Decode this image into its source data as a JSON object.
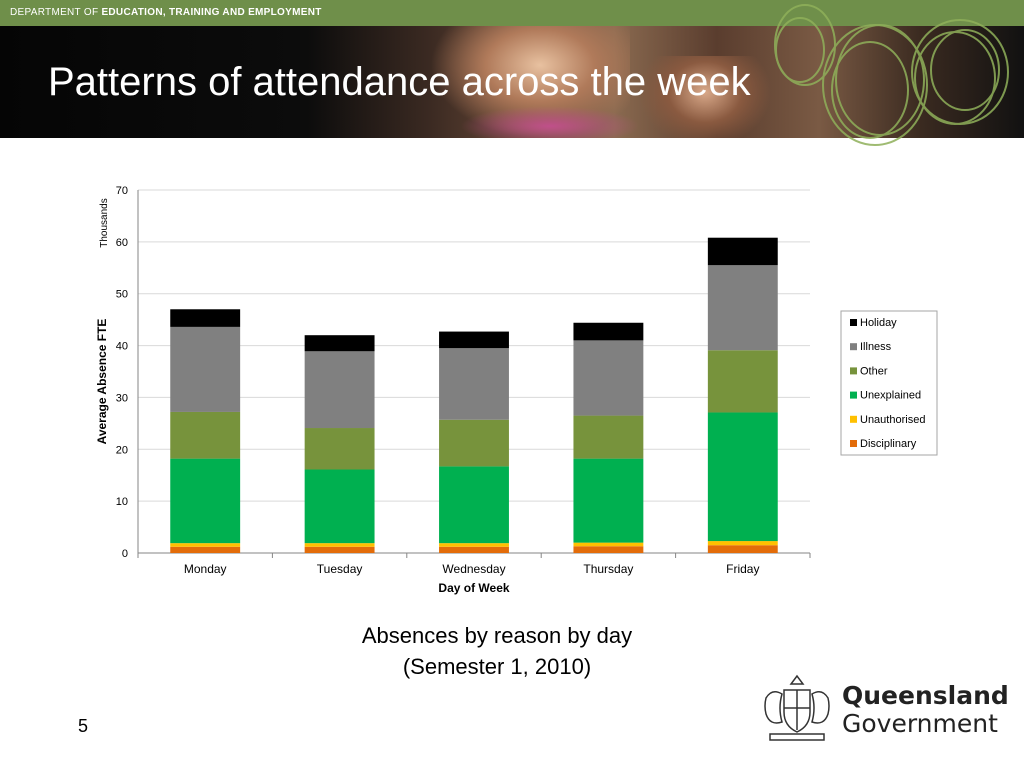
{
  "header": {
    "department_prefix": "DEPARTMENT OF ",
    "department_name": "EDUCATION, TRAINING AND EMPLOYMENT"
  },
  "slide": {
    "title": "Patterns of attendance across the week",
    "caption_line1": "Absences by reason by day",
    "caption_line2": "(Semester 1, 2010)",
    "page_number": "5"
  },
  "branding": {
    "line1": "Queensland",
    "line2": "Government"
  },
  "chart_data": {
    "type": "bar",
    "stacked": true,
    "categories": [
      "Monday",
      "Tuesday",
      "Wednesday",
      "Thursday",
      "Friday"
    ],
    "series": [
      {
        "name": "Disciplinary",
        "color": "#e36c09",
        "values": [
          1.2,
          1.2,
          1.2,
          1.3,
          1.5
        ]
      },
      {
        "name": "Unauthorised",
        "color": "#ffc000",
        "values": [
          0.7,
          0.7,
          0.7,
          0.7,
          0.8
        ]
      },
      {
        "name": "Unexplained",
        "color": "#00b050",
        "values": [
          16.3,
          14.2,
          14.8,
          16.2,
          24.8
        ]
      },
      {
        "name": "Other",
        "color": "#77933c",
        "values": [
          9.0,
          8.0,
          9.0,
          8.3,
          12.0
        ]
      },
      {
        "name": "Illness",
        "color": "#808080",
        "values": [
          16.4,
          14.8,
          13.8,
          14.5,
          16.4
        ]
      },
      {
        "name": "Holiday",
        "color": "#000000",
        "values": [
          3.4,
          3.1,
          3.2,
          3.4,
          5.3
        ]
      }
    ],
    "legend_order": [
      "Holiday",
      "Illness",
      "Other",
      "Unexplained",
      "Unauthorised",
      "Disciplinary"
    ],
    "legend_position": "right",
    "ylim": [
      0,
      70
    ],
    "yticks": [
      "0",
      "10",
      "20",
      "30",
      "40",
      "50",
      "60",
      "70"
    ],
    "y_unit": "Thousands",
    "ylabel": "Average Absence FTE",
    "xlabel": "Day of Week",
    "grid": true
  }
}
